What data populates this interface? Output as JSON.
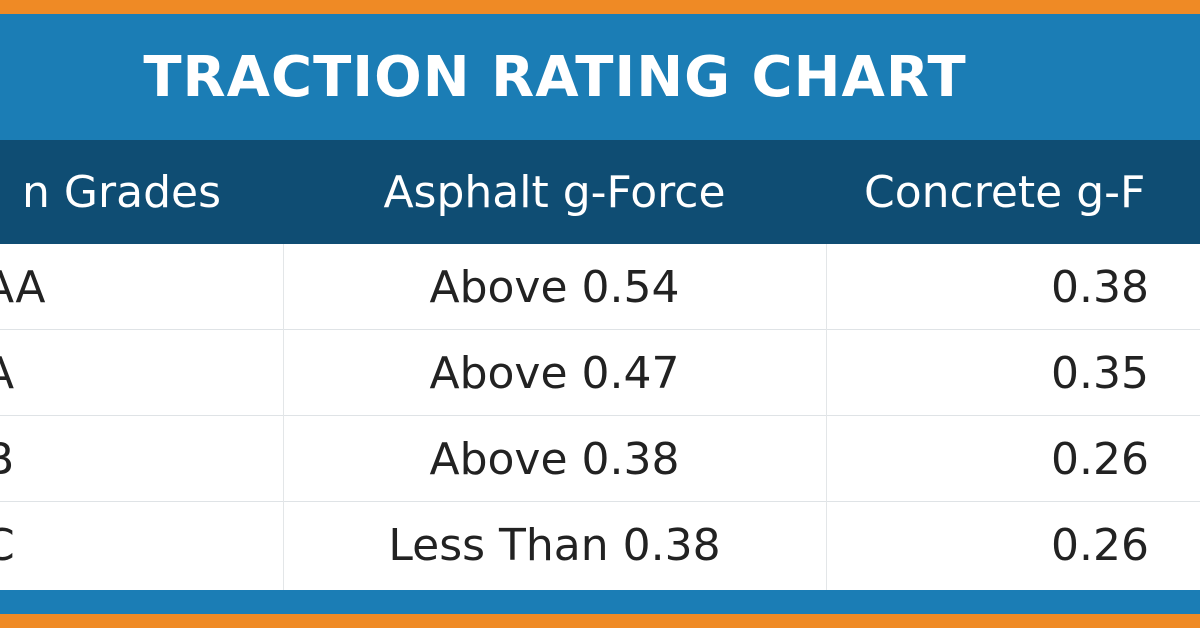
{
  "title": "TRACTION RATING CHART",
  "columns": [
    "n Grades",
    "Asphalt g-Force",
    "Concrete g-F"
  ],
  "rows": [
    {
      "grade": "AA",
      "asphalt": "Above 0.54",
      "concrete": "0.38"
    },
    {
      "grade": "A",
      "asphalt": "Above 0.47",
      "concrete": "0.35"
    },
    {
      "grade": "B",
      "asphalt": "Above 0.38",
      "concrete": "0.26"
    },
    {
      "grade": "C",
      "asphalt": "Less Than 0.38",
      "concrete": "0.26"
    }
  ],
  "colors": {
    "accent_orange": "#ef8a25",
    "title_blue": "#1b7db5",
    "header_navy": "#0f4d73"
  }
}
